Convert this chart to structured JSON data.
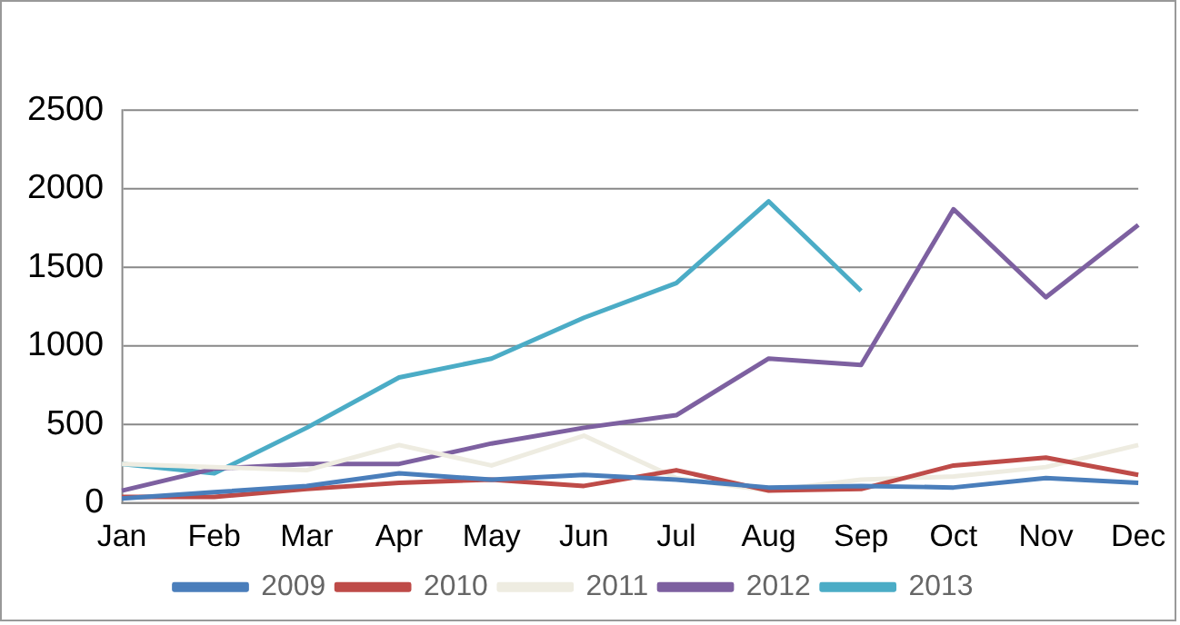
{
  "chart_data": {
    "type": "line",
    "categories": [
      "Jan",
      "Feb",
      "Mar",
      "Apr",
      "May",
      "Jun",
      "Jul",
      "Aug",
      "Sep",
      "Oct",
      "Nov",
      "Dec"
    ],
    "series": [
      {
        "name": "2009",
        "color": "#4a7ebb",
        "values": [
          30,
          70,
          110,
          190,
          150,
          180,
          150,
          100,
          110,
          100,
          160,
          130
        ]
      },
      {
        "name": "2010",
        "color": "#be4b48",
        "values": [
          40,
          40,
          90,
          130,
          150,
          110,
          210,
          80,
          90,
          240,
          290,
          180
        ]
      },
      {
        "name": "2011",
        "color": "#eeece1",
        "values": [
          250,
          230,
          210,
          370,
          240,
          430,
          160,
          80,
          150,
          170,
          230,
          370
        ]
      },
      {
        "name": "2012",
        "color": "#7d60a0",
        "values": [
          80,
          220,
          250,
          250,
          380,
          480,
          560,
          920,
          880,
          1870,
          1310,
          1770
        ]
      },
      {
        "name": "2013",
        "color": "#4bacc6",
        "values": [
          250,
          190,
          480,
          800,
          920,
          1180,
          1400,
          1920,
          1350,
          null,
          null,
          null
        ]
      }
    ],
    "ylim": [
      0,
      2500
    ],
    "yticks": [
      0,
      500,
      1000,
      1500,
      2000,
      2500
    ],
    "grid": "y",
    "legend": "bottom",
    "marker": "none"
  }
}
